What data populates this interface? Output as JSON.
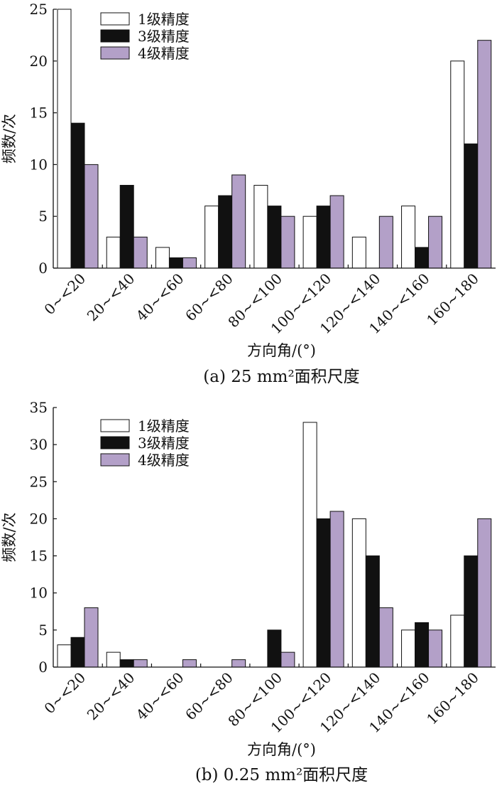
{
  "chart_data": [
    {
      "type": "bar",
      "caption": "(a)  25 mm²面积尺度",
      "xlabel": "方向角/(°)",
      "ylabel": "频数/次",
      "ylim": [
        0,
        25
      ],
      "yticks": [
        "0",
        "5",
        "10",
        "15",
        "20",
        "25"
      ],
      "categories": [
        "0~<20",
        "20~<40",
        "40~<60",
        "60~<80",
        "80~<100",
        "100~<120",
        "120~<140",
        "140~<160",
        "160~180"
      ],
      "series": [
        {
          "name": "1级精度",
          "color": "#ffffff",
          "values": [
            25,
            3,
            2,
            6,
            8,
            5,
            3,
            6,
            20
          ]
        },
        {
          "name": "3级精度",
          "color": "#111111",
          "values": [
            14,
            8,
            1,
            7,
            6,
            6,
            0,
            2,
            12
          ]
        },
        {
          "name": "4级精度",
          "color": "#b3a0c8",
          "values": [
            10,
            3,
            1,
            9,
            5,
            7,
            5,
            5,
            22
          ]
        }
      ],
      "legend": "top-left",
      "grid": false
    },
    {
      "type": "bar",
      "caption": "(b)  0.25 mm²面积尺度",
      "xlabel": "方向角/(°)",
      "ylabel": "频数/次",
      "ylim": [
        0,
        35
      ],
      "yticks": [
        "0",
        "5",
        "10",
        "15",
        "20",
        "25",
        "30",
        "35"
      ],
      "categories": [
        "0~<20",
        "20~<40",
        "40~<60",
        "60~<80",
        "80~<100",
        "100~<120",
        "120~<140",
        "140~<160",
        "160~180"
      ],
      "series": [
        {
          "name": "1级精度",
          "color": "#ffffff",
          "values": [
            3,
            2,
            0,
            0,
            0,
            33,
            20,
            5,
            7
          ]
        },
        {
          "name": "3级精度",
          "color": "#111111",
          "values": [
            4,
            1,
            0,
            0,
            5,
            20,
            15,
            6,
            15
          ]
        },
        {
          "name": "4级精度",
          "color": "#b3a0c8",
          "values": [
            8,
            1,
            1,
            1,
            2,
            21,
            8,
            5,
            20
          ]
        }
      ],
      "legend": "top-left",
      "grid": false
    }
  ]
}
